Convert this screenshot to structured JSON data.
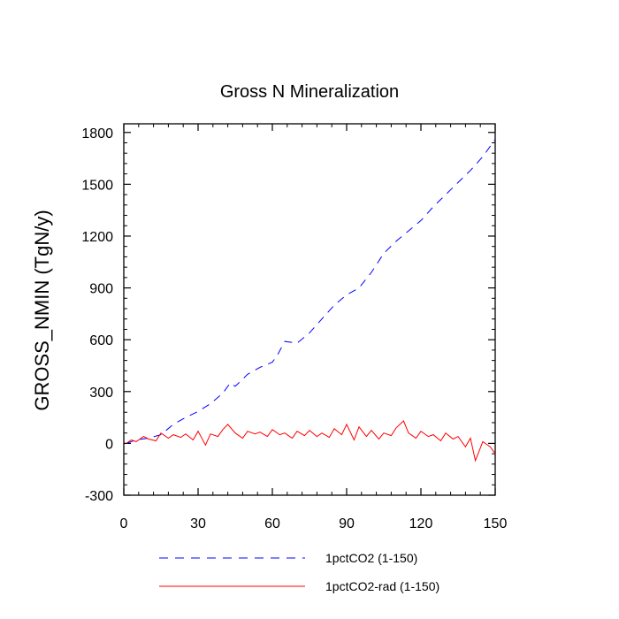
{
  "chart_data": {
    "type": "line",
    "title": "Gross N Mineralization",
    "xlabel": "",
    "ylabel": "GROSS_NMIN  (TgN/y)",
    "xlim": [
      0,
      150
    ],
    "ylim": [
      -300,
      1850
    ],
    "xticks": [
      0,
      30,
      60,
      90,
      120,
      150
    ],
    "yticks": [
      -300,
      0,
      300,
      600,
      900,
      1200,
      1500,
      1800
    ],
    "xtick_labels": [
      "0",
      "30",
      "60",
      "90",
      "120",
      "150"
    ],
    "ytick_labels": [
      "-300",
      "0",
      "300",
      "600",
      "900",
      "1200",
      "1500",
      "1800"
    ],
    "grid": false,
    "legend_position": "bottom",
    "series": [
      {
        "name": "1pctCO2 (1-150)",
        "color": "#0000ff",
        "style": "dashed",
        "x": [
          1,
          5,
          10,
          15,
          20,
          25,
          30,
          35,
          40,
          43,
          45,
          50,
          55,
          60,
          62,
          65,
          70,
          75,
          80,
          85,
          90,
          95,
          100,
          105,
          110,
          115,
          120,
          125,
          130,
          135,
          140,
          145,
          150
        ],
        "values": [
          0,
          20,
          30,
          50,
          110,
          150,
          185,
          230,
          290,
          350,
          330,
          400,
          440,
          470,
          510,
          590,
          580,
          640,
          720,
          800,
          860,
          900,
          990,
          1100,
          1170,
          1230,
          1290,
          1370,
          1440,
          1510,
          1580,
          1660,
          1760
        ]
      },
      {
        "name": "1pctCO2-rad (1-150)",
        "color": "#ff0000",
        "style": "solid",
        "x": [
          1,
          3,
          5,
          8,
          10,
          13,
          15,
          18,
          20,
          23,
          25,
          28,
          30,
          33,
          35,
          38,
          40,
          42,
          45,
          48,
          50,
          53,
          55,
          58,
          60,
          63,
          65,
          68,
          70,
          73,
          75,
          78,
          80,
          83,
          85,
          88,
          90,
          93,
          95,
          98,
          100,
          103,
          105,
          108,
          110,
          113,
          115,
          118,
          120,
          123,
          125,
          128,
          130,
          133,
          135,
          138,
          140,
          142,
          145,
          148,
          150
        ],
        "values": [
          0,
          20,
          10,
          40,
          25,
          15,
          60,
          30,
          50,
          35,
          55,
          20,
          70,
          -10,
          55,
          40,
          80,
          110,
          60,
          30,
          70,
          55,
          65,
          40,
          80,
          50,
          60,
          30,
          70,
          45,
          75,
          40,
          60,
          35,
          85,
          50,
          110,
          20,
          95,
          40,
          75,
          25,
          60,
          45,
          90,
          130,
          60,
          30,
          70,
          40,
          50,
          15,
          60,
          25,
          40,
          -20,
          30,
          -100,
          10,
          -20,
          -60
        ]
      }
    ]
  }
}
